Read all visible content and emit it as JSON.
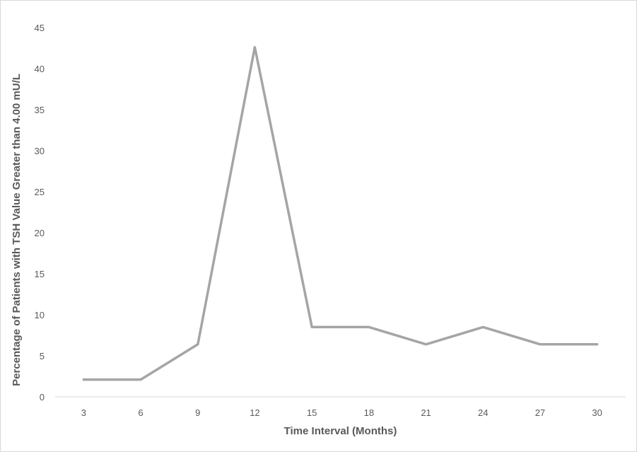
{
  "chart_data": {
    "type": "line",
    "title": "",
    "xlabel": "Time Interval (Months)",
    "ylabel": "Percentage of Patients with TSH Value Greater than 4.00 mU/L",
    "categories": [
      "3",
      "6",
      "9",
      "12",
      "15",
      "18",
      "21",
      "24",
      "27",
      "30"
    ],
    "series": [
      {
        "values": [
          2.1,
          2.1,
          6.4,
          42.6,
          8.5,
          8.5,
          6.4,
          8.5,
          6.4,
          6.4
        ],
        "color": "#a5a5a5"
      }
    ],
    "ylim": [
      0,
      45
    ],
    "yticks": [
      "0",
      "5",
      "10",
      "15",
      "20",
      "25",
      "30",
      "35",
      "40",
      "45"
    ],
    "grid": false,
    "legend": "none"
  }
}
